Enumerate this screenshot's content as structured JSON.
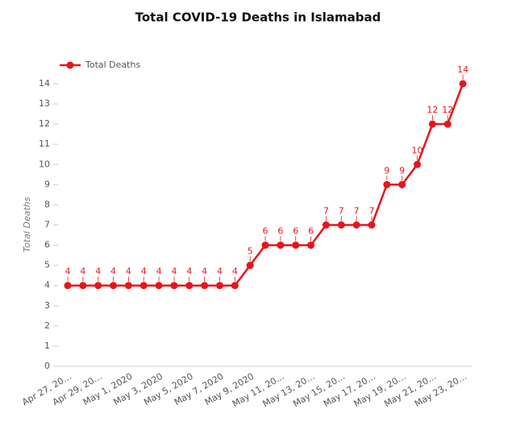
{
  "chart_data": {
    "type": "line",
    "title": "Total COVID-19 Deaths in Islamabad",
    "y_label": "Total Deaths",
    "categories": [
      "Apr 27, 20…",
      null,
      "Apr 29, 20…",
      null,
      "May 1, 2020",
      null,
      "May 3, 2020",
      null,
      "May 5, 2020",
      null,
      "May 7, 2020",
      null,
      "May 9, 2020",
      null,
      "May 11, 20…",
      null,
      "May 13, 20…",
      null,
      "May 15, 20…",
      null,
      "May 17, 20…",
      null,
      "May 19, 20…",
      null,
      "May 21, 20…",
      null,
      "May 23, 20…"
    ],
    "series": [
      {
        "name": "Total Deaths",
        "color": "#e8141b",
        "values": [
          4,
          4,
          4,
          4,
          4,
          4,
          4,
          4,
          4,
          4,
          4,
          4,
          5,
          6,
          6,
          6,
          6,
          7,
          7,
          7,
          7,
          9,
          9,
          10,
          12,
          12,
          14
        ]
      }
    ],
    "ylim": [
      0,
      14
    ],
    "yticks": [
      0,
      1,
      2,
      3,
      4,
      5,
      6,
      7,
      8,
      9,
      10,
      11,
      12,
      13,
      14
    ],
    "legend": "top-left",
    "grid": false
  }
}
